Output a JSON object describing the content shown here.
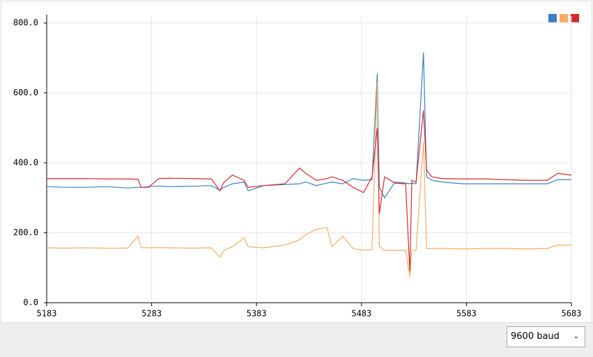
{
  "chart_data": {
    "type": "line",
    "x": [
      5183,
      5200,
      5220,
      5240,
      5260,
      5270,
      5273,
      5280,
      5290,
      5300,
      5320,
      5340,
      5348,
      5352,
      5360,
      5371,
      5375,
      5390,
      5410,
      5424,
      5430,
      5440,
      5450,
      5455,
      5465,
      5475,
      5485,
      5493,
      5498,
      5500,
      5505,
      5515,
      5525,
      5529,
      5531,
      5535,
      5542,
      5545,
      5550,
      5560,
      5580,
      5600,
      5620,
      5640,
      5660,
      5670,
      5683
    ],
    "series": [
      {
        "color": "#3a7fc1",
        "values": [
          332,
          330,
          330,
          332,
          328,
          330,
          330,
          332,
          334,
          332,
          333,
          335,
          322,
          330,
          340,
          345,
          320,
          335,
          338,
          340,
          345,
          335,
          342,
          345,
          340,
          355,
          350,
          352,
          655,
          330,
          300,
          345,
          342,
          340,
          342,
          340,
          715,
          360,
          350,
          345,
          340,
          340,
          340,
          340,
          340,
          352,
          352
        ]
      },
      {
        "color": "#f6ad62",
        "values": [
          157,
          156,
          157,
          156,
          156,
          190,
          158,
          157,
          158,
          157,
          156,
          157,
          130,
          150,
          160,
          185,
          160,
          157,
          165,
          180,
          195,
          210,
          215,
          160,
          190,
          155,
          150,
          152,
          630,
          160,
          150,
          150,
          150,
          75,
          148,
          150,
          460,
          155,
          155,
          155,
          154,
          155,
          155,
          154,
          155,
          165,
          165
        ]
      },
      {
        "color": "#d8282d",
        "values": [
          355,
          355,
          355,
          354,
          354,
          353,
          330,
          330,
          355,
          356,
          355,
          354,
          320,
          345,
          365,
          350,
          330,
          335,
          340,
          385,
          370,
          350,
          355,
          360,
          350,
          330,
          315,
          360,
          500,
          255,
          360,
          342,
          340,
          90,
          350,
          345,
          550,
          380,
          360,
          355,
          354,
          354,
          352,
          350,
          350,
          370,
          365
        ]
      }
    ],
    "xlim": [
      5183,
      5683
    ],
    "xticks": [
      5183,
      5283,
      5383,
      5483,
      5583,
      5683
    ],
    "ylim": [
      0,
      800
    ],
    "yticks": [
      {
        "value": 0,
        "label": "0.0"
      },
      {
        "value": 200,
        "label": "200.0"
      },
      {
        "value": 400,
        "label": "400.0"
      },
      {
        "value": 600,
        "label": "600.0"
      },
      {
        "value": 800,
        "label": "800.0"
      }
    ],
    "grid": true
  },
  "controls": {
    "baud": "9600 baud"
  }
}
